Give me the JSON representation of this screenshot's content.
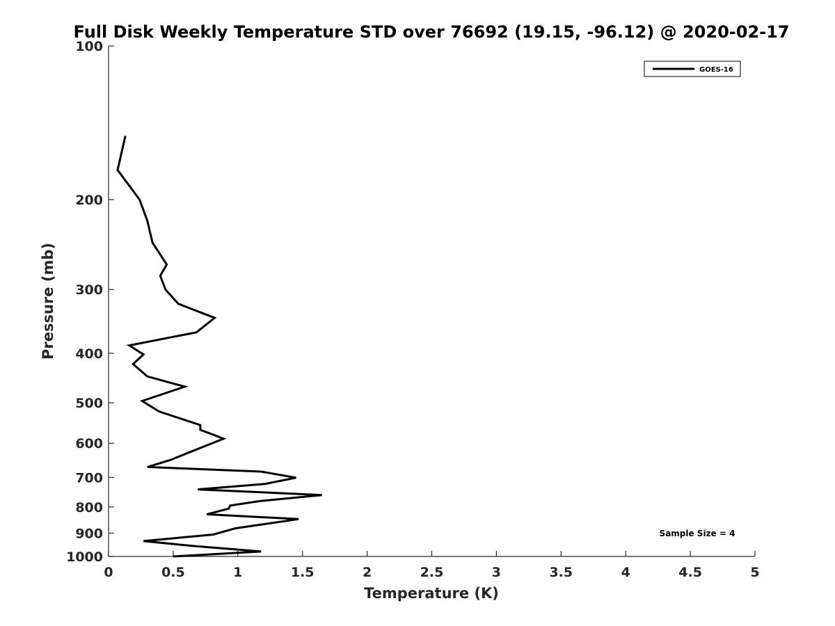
{
  "chart_data": {
    "type": "line",
    "title": "Full Disk Weekly Temperature STD over 76692 (19.15, -96.12) @ 2020-02-17",
    "xlabel": "Temperature (K)",
    "ylabel": "Pressure (mb)",
    "xlim": [
      0,
      5
    ],
    "ylim": [
      1000,
      100
    ],
    "y_scale": "log",
    "y_reversed": true,
    "x_ticks": [
      "0",
      "0.5",
      "1",
      "1.5",
      "2",
      "2.5",
      "3",
      "3.5",
      "4",
      "4.5",
      "5"
    ],
    "y_ticks": [
      "100",
      "200",
      "300",
      "400",
      "500",
      "600",
      "700",
      "800",
      "900",
      "1000"
    ],
    "grid": false,
    "legend_position": "top-right",
    "annotation": "Sample Size = 4",
    "series": [
      {
        "name": "GOES-16",
        "color": "#000000",
        "points": [
          [
            0.13,
            150
          ],
          [
            0.07,
            175
          ],
          [
            0.24,
            200
          ],
          [
            0.3,
            220
          ],
          [
            0.34,
            243
          ],
          [
            0.45,
            268
          ],
          [
            0.4,
            282
          ],
          [
            0.44,
            300
          ],
          [
            0.54,
            320
          ],
          [
            0.82,
            341
          ],
          [
            0.68,
            364
          ],
          [
            0.16,
            386
          ],
          [
            0.27,
            402
          ],
          [
            0.19,
            420
          ],
          [
            0.3,
            444
          ],
          [
            0.59,
            465
          ],
          [
            0.26,
            496
          ],
          [
            0.39,
            520
          ],
          [
            0.71,
            553
          ],
          [
            0.71,
            565
          ],
          [
            0.89,
            588
          ],
          [
            0.64,
            623
          ],
          [
            0.48,
            647
          ],
          [
            0.3,
            668
          ],
          [
            1.18,
            682
          ],
          [
            1.45,
            701
          ],
          [
            1.21,
            721
          ],
          [
            0.69,
            739
          ],
          [
            1.65,
            758
          ],
          [
            1.17,
            779
          ],
          [
            0.94,
            795
          ],
          [
            0.93,
            806
          ],
          [
            0.76,
            827
          ],
          [
            1.47,
            845
          ],
          [
            0.98,
            881
          ],
          [
            0.81,
            906
          ],
          [
            0.27,
            933
          ],
          [
            0.66,
            954
          ],
          [
            1.18,
            978
          ],
          [
            0.5,
            1000
          ]
        ]
      }
    ]
  }
}
